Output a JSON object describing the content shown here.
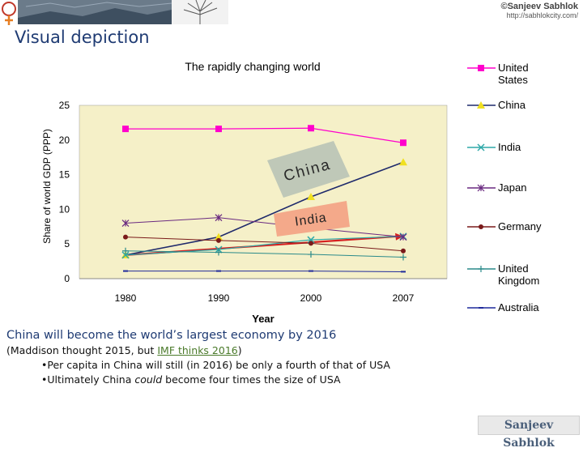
{
  "header": {
    "brand_name": "©Sanjeev Sabhlok",
    "brand_url": "http://sabhlokcity.com/"
  },
  "slide_title": "Visual depiction",
  "chart_data": {
    "type": "line",
    "title": "The rapidly changing world",
    "xlabel": "Year",
    "ylabel": "Share of world GDP (PPP)",
    "categories": [
      "1980",
      "1990",
      "2000",
      "2007"
    ],
    "yticks": [
      "0",
      "5",
      "10",
      "15",
      "20",
      "25"
    ],
    "ylim": [
      0,
      25
    ],
    "grid": false,
    "plot_background": "#f5f0c8",
    "legend_position": "right",
    "series": [
      {
        "name": "United States",
        "values": [
          21.6,
          21.6,
          21.7,
          19.6
        ],
        "color": "#ff00cc",
        "marker": "square"
      },
      {
        "name": "China",
        "values": [
          3.4,
          6.0,
          11.8,
          16.8
        ],
        "color": "#1f2a6b",
        "marker": "triangle"
      },
      {
        "name": "India",
        "values": [
          3.4,
          4.2,
          5.6,
          6.1
        ],
        "color": "#2ea8a8",
        "marker": "x"
      },
      {
        "name": "Japan",
        "values": [
          8.0,
          8.8,
          7.3,
          6.0
        ],
        "color": "#6a2a80",
        "marker": "star"
      },
      {
        "name": "Germany",
        "values": [
          6.0,
          5.5,
          5.1,
          4.0
        ],
        "color": "#7a1a1a",
        "marker": "circle"
      },
      {
        "name": "United Kingdom",
        "values": [
          4.0,
          3.8,
          3.5,
          3.1
        ],
        "color": "#2a8a8a",
        "marker": "plus"
      },
      {
        "name": "Australia",
        "values": [
          1.1,
          1.1,
          1.1,
          1.0
        ],
        "color": "#1f2a9b",
        "marker": "dash"
      }
    ],
    "annotations": [
      {
        "text": "China",
        "background": "#bfc8b8"
      },
      {
        "text": "India",
        "background": "#f4a98a"
      }
    ],
    "trend_arrow_color": "#d62020"
  },
  "caption": {
    "title": "China will become the world’s largest economy by 2016",
    "line_prefix": "(Maddison thought 2015, but ",
    "line_link": "IMF thinks 2016",
    "line_suffix": ")",
    "bullets": [
      {
        "pre": "Per capita in China will still (in 2016) be only a fourth of that of USA",
        "em": "",
        "post": ""
      },
      {
        "pre": "Ultimately China ",
        "em": "could",
        "post": " become four times the size of USA"
      }
    ]
  },
  "footer": {
    "signature": "Sanjeev Sabhlok"
  }
}
